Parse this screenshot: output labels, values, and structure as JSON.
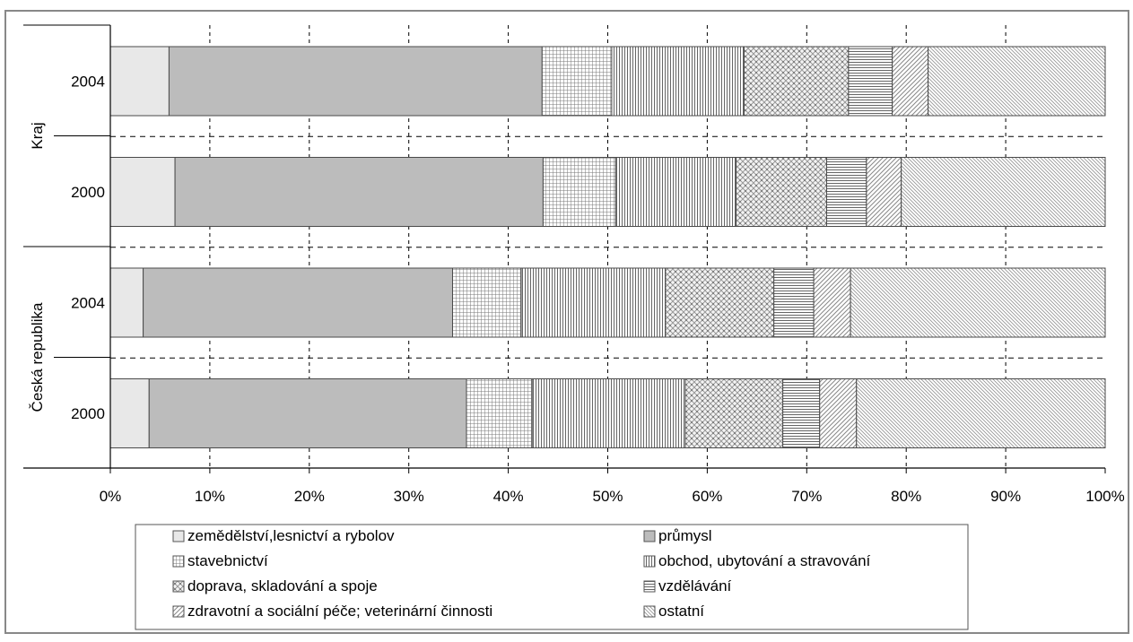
{
  "chart_data": {
    "type": "bar",
    "orientation": "horizontal",
    "stacked": "percent",
    "categories": [
      "2004",
      "2000",
      "2004",
      "2000"
    ],
    "groups": [
      {
        "label": "Kraj",
        "categories": [
          "2004",
          "2000"
        ]
      },
      {
        "label": "Česká republika",
        "categories": [
          "2004",
          "2000"
        ]
      }
    ],
    "xlim": [
      0,
      100
    ],
    "x_ticks": [
      "0%",
      "10%",
      "20%",
      "30%",
      "40%",
      "50%",
      "60%",
      "70%",
      "80%",
      "90%",
      "100%"
    ],
    "grid": true,
    "legend_position": "bottom",
    "series": [
      {
        "name": "zemědělství,lesnictví a rybolov",
        "pattern": "none",
        "fill": "#e8e8e8",
        "values": [
          5.9,
          6.5,
          3.3,
          3.9
        ]
      },
      {
        "name": "průmysl",
        "pattern": "none",
        "fill": "#bcbcbc",
        "values": [
          37.5,
          37.0,
          31.1,
          31.9
        ]
      },
      {
        "name": "stavebnictví",
        "pattern": "grid",
        "fill": "#ffffff",
        "values": [
          7.0,
          7.3,
          6.9,
          6.6
        ]
      },
      {
        "name": "obchod, ubytování a stravování",
        "pattern": "vlines",
        "fill": "#ffffff",
        "values": [
          13.3,
          12.1,
          14.5,
          15.4
        ]
      },
      {
        "name": "doprava, skladování a spoje",
        "pattern": "dots",
        "fill": "#ffffff",
        "values": [
          10.5,
          9.1,
          10.9,
          9.8
        ]
      },
      {
        "name": "vzdělávání",
        "pattern": "hlines",
        "fill": "#ffffff",
        "values": [
          4.4,
          4.0,
          4.0,
          3.7
        ]
      },
      {
        "name": "zdravotní a sociální péče; veterinární činnosti",
        "pattern": "diag",
        "fill": "#ffffff",
        "values": [
          3.6,
          3.5,
          3.7,
          3.7
        ]
      },
      {
        "name": "ostatní",
        "pattern": "diagdense",
        "fill": "#ffffff",
        "values": [
          17.8,
          20.5,
          25.6,
          25.0
        ]
      }
    ]
  }
}
